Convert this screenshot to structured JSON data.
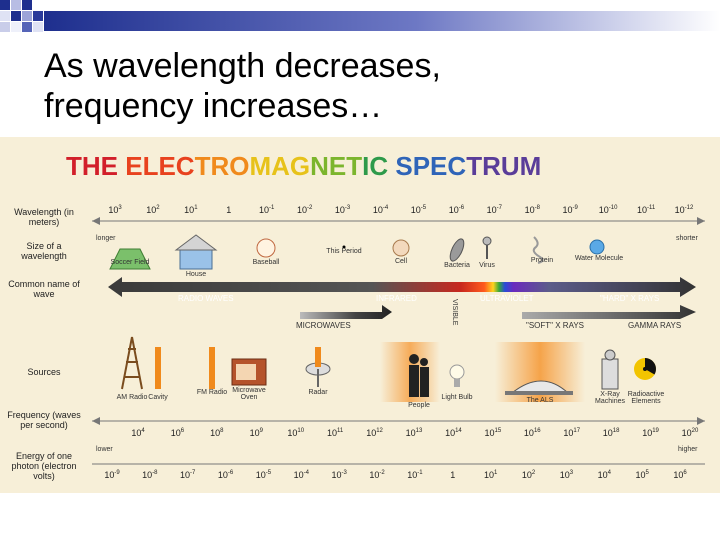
{
  "slide": {
    "title_line1": "As wavelength decreases,",
    "title_line2": "frequency increases…"
  },
  "diagram": {
    "heading_parts": [
      {
        "text": "THE ",
        "color": "#d21f2a"
      },
      {
        "text": "ELEC",
        "color": "#e8421e"
      },
      {
        "text": "TRO",
        "color": "#f08a1c"
      },
      {
        "text": "MAG",
        "color": "#e7c21a"
      },
      {
        "text": "NET",
        "color": "#7cb52d"
      },
      {
        "text": "IC ",
        "color": "#2e9a4a"
      },
      {
        "text": "SPEC",
        "color": "#2f64b8"
      },
      {
        "text": "TRUM",
        "color": "#5a3d99"
      }
    ],
    "row_labels": {
      "wavelength": "Wavelength (in meters)",
      "size": "Size of a wavelength",
      "common_name": "Common name of wave",
      "sources": "Sources",
      "frequency": "Frequency (waves per second)",
      "energy": "Energy of one photon (electron volts)"
    },
    "wavelength_ticks": [
      {
        "b": "10",
        "e": "3"
      },
      {
        "b": "10",
        "e": "2"
      },
      {
        "b": "10",
        "e": "1"
      },
      {
        "b": "1",
        "e": ""
      },
      {
        "b": "10",
        "e": "-1"
      },
      {
        "b": "10",
        "e": "-2"
      },
      {
        "b": "10",
        "e": "-3"
      },
      {
        "b": "10",
        "e": "-4"
      },
      {
        "b": "10",
        "e": "-5"
      },
      {
        "b": "10",
        "e": "-6"
      },
      {
        "b": "10",
        "e": "-7"
      },
      {
        "b": "10",
        "e": "-8"
      },
      {
        "b": "10",
        "e": "-9"
      },
      {
        "b": "10",
        "e": "-10"
      },
      {
        "b": "10",
        "e": "-11"
      },
      {
        "b": "10",
        "e": "-12"
      }
    ],
    "longer": "longer",
    "shorter": "shorter",
    "size_items": [
      "Soccer Field",
      "House",
      "Baseball",
      "This Period",
      "Cell",
      "Bacteria",
      "Virus",
      "Protein",
      "Water Molecule"
    ],
    "waves": {
      "radio": "RADIO WAVES",
      "infrared": "INFRARED",
      "visible": "VISIBLE",
      "ultraviolet": "ULTRAVIOLET",
      "hard_xrays": "\"HARD\" X RAYS",
      "microwaves": "MICROWAVES",
      "soft_xrays": "\"SOFT\" X RAYS",
      "gamma": "GAMMA RAYS"
    },
    "sources": [
      "AM Radio",
      "Cavity",
      "FM Radio",
      "Microwave Oven",
      "Radar",
      "People",
      "Light Bulb",
      "The ALS",
      "X-Ray Machines",
      "Radioactive Elements"
    ],
    "frequency_ticks": [
      {
        "b": "10",
        "e": "4"
      },
      {
        "b": "10",
        "e": "6"
      },
      {
        "b": "10",
        "e": "8"
      },
      {
        "b": "10",
        "e": "9"
      },
      {
        "b": "10",
        "e": "10"
      },
      {
        "b": "10",
        "e": "11"
      },
      {
        "b": "10",
        "e": "12"
      },
      {
        "b": "10",
        "e": "13"
      },
      {
        "b": "10",
        "e": "14"
      },
      {
        "b": "10",
        "e": "15"
      },
      {
        "b": "10",
        "e": "16"
      },
      {
        "b": "10",
        "e": "17"
      },
      {
        "b": "10",
        "e": "18"
      },
      {
        "b": "10",
        "e": "19"
      },
      {
        "b": "10",
        "e": "20"
      }
    ],
    "lower": "lower",
    "higher": "higher",
    "energy_ticks": [
      {
        "b": "10",
        "e": "-9"
      },
      {
        "b": "10",
        "e": "-8"
      },
      {
        "b": "10",
        "e": "-7"
      },
      {
        "b": "10",
        "e": "-6"
      },
      {
        "b": "10",
        "e": "-5"
      },
      {
        "b": "10",
        "e": "-4"
      },
      {
        "b": "10",
        "e": "-3"
      },
      {
        "b": "10",
        "e": "-2"
      },
      {
        "b": "10",
        "e": "-1"
      },
      {
        "b": "1",
        "e": ""
      },
      {
        "b": "10",
        "e": "1"
      },
      {
        "b": "10",
        "e": "2"
      },
      {
        "b": "10",
        "e": "3"
      },
      {
        "b": "10",
        "e": "4"
      },
      {
        "b": "10",
        "e": "5"
      },
      {
        "b": "10",
        "e": "6"
      }
    ]
  }
}
